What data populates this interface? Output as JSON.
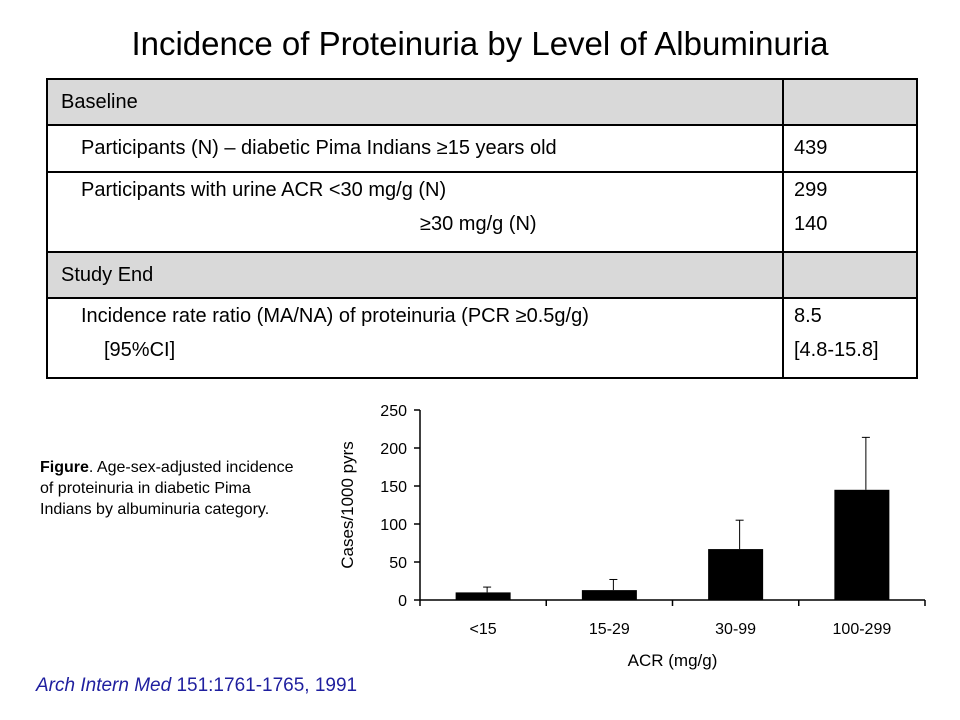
{
  "title": "Incidence of Proteinuria by Level of Albuminuria",
  "table": {
    "baseline_label": "Baseline",
    "participants_label": "Participants (N) – diabetic Pima Indians ≥15 years old",
    "participants_value": "439",
    "acr_label_line1": "Participants with urine ACR <30 mg/g (N)",
    "acr_label_line2": "≥30 mg/g (N)",
    "acr_value_lt30": "299",
    "acr_value_ge30": "140",
    "study_end_label": "Study End",
    "irr_label_line1": "Incidence rate ratio (MA/NA) of proteinuria (PCR ≥0.5g/g)",
    "irr_label_line2": "[95%CI]",
    "irr_value": "8.5",
    "irr_ci": "[4.8-15.8]"
  },
  "caption": {
    "bold": "Figure",
    "text": ". Age-sex-adjusted incidence of proteinuria in diabetic Pima Indians by albuminuria category."
  },
  "citation": {
    "journal": "Arch Intern Med",
    "ref": " 151:1761-1765, 1991"
  },
  "chart_data": {
    "type": "bar",
    "categories": [
      "<15",
      "15-29",
      "30-99",
      "100-299"
    ],
    "values": [
      10,
      13,
      67,
      145
    ],
    "error_upper": [
      17,
      27,
      105,
      214
    ],
    "xlabel": "ACR (mg/g)",
    "ylabel": "Cases/1000 pyrs",
    "ylim": [
      0,
      250
    ],
    "yticks": [
      0,
      50,
      100,
      150,
      200,
      250
    ],
    "grid": false,
    "bar_color": "#000000"
  }
}
